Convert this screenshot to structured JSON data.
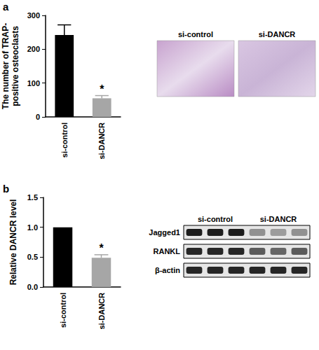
{
  "chart_data": [
    {
      "type": "bar",
      "ylabel": "The number of TRAP-\npositive osteoclasts",
      "categories": [
        "si-control",
        "si-DANCR"
      ],
      "values": [
        242,
        55
      ],
      "errors": [
        30,
        8
      ],
      "colors": [
        "#000000",
        "#a6a6a6"
      ],
      "ylim": [
        0,
        300
      ],
      "yticks": [
        0,
        100,
        200,
        300
      ],
      "grid": false,
      "annotations": [
        {
          "category": "si-DANCR",
          "text": "*"
        }
      ]
    },
    {
      "type": "bar",
      "ylabel": "Relative DANCR level",
      "categories": [
        "si-control",
        "si-DANCR"
      ],
      "values": [
        1.0,
        0.49
      ],
      "errors": [
        0,
        0.05
      ],
      "colors": [
        "#000000",
        "#a6a6a6"
      ],
      "ylim": [
        0,
        1.5
      ],
      "yticks": [
        {
          "value": 0,
          "label": "0.0"
        },
        {
          "value": 0.5,
          "label": "0.5"
        },
        {
          "value": 1.0,
          "label": "1.0"
        },
        {
          "value": 1.5,
          "label": "1.5"
        }
      ],
      "grid": false,
      "annotations": [
        {
          "category": "si-DANCR",
          "text": "*"
        }
      ]
    }
  ],
  "panels": {
    "a": {
      "label": "a",
      "images": [
        "si-control",
        "si-DANCR"
      ]
    },
    "b": {
      "label": "b",
      "blot": {
        "groups": [
          "si-control",
          "si-DANCR"
        ],
        "rows": [
          {
            "label": "Jagged1",
            "intensity": [
              0.95,
              0.95,
              0.95,
              0.4,
              0.35,
              0.4
            ]
          },
          {
            "label": "RANKL",
            "intensity": [
              0.9,
              0.9,
              0.9,
              0.65,
              0.6,
              0.65
            ]
          },
          {
            "label": "β-actin",
            "intensity": [
              0.9,
              0.9,
              0.9,
              0.9,
              0.9,
              0.9
            ]
          }
        ]
      }
    }
  }
}
